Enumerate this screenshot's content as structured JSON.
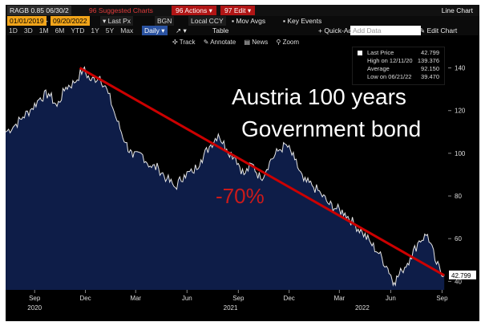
{
  "toolbar": {
    "ticker": "RAGB 0.85 06/30/2",
    "suggested_charts": "Suggested Charts",
    "actions": "Actions",
    "edit": "Edit",
    "chart_type": "Line Chart",
    "date_start": "01/01/2019",
    "date_end": "09/20/2022",
    "field": "Last Px",
    "source": "BGN",
    "currency": "Local CCY",
    "mov_avgs": "Mov Avgs",
    "key_events": "Key Events",
    "ranges": [
      "1D",
      "3D",
      "1M",
      "6M",
      "YTD",
      "1Y",
      "5Y",
      "Max"
    ],
    "frequency": "Daily",
    "table": "Table",
    "quick_add": "+ Quick-Add",
    "add_data_placeholder": "Add Data",
    "edit_chart": "Edit Chart",
    "tools": [
      "Track",
      "Annotate",
      "News",
      "Zoom"
    ]
  },
  "legend": {
    "last_price_label": "Last Price",
    "last_price": "42.799",
    "high_label": "High on 12/11/20",
    "high": "139.376",
    "average_label": "Average",
    "average": "92.150",
    "low_label": "Low on 06/21/22",
    "low": "39.470"
  },
  "colors": {
    "area_fill": "#0e1d48",
    "series_line": "#e6e6e6",
    "trend_line": "#cc0000",
    "annotation_text": "#ffffff"
  },
  "annotations": {
    "headline_line1": "Austria 100 years",
    "headline_line2": "Government bond",
    "decline_label": "-70%"
  },
  "chart_data": {
    "type": "area",
    "title": "",
    "xlabel": "",
    "ylabel": "",
    "ylim": [
      36,
      150
    ],
    "xlim": [
      "2020-07-25",
      "2022-09-23"
    ],
    "y_ticks": [
      40,
      60,
      80,
      100,
      120,
      140
    ],
    "x_month_ticks": [
      "Sep",
      "Dec",
      "Mar",
      "Jun",
      "Sep",
      "Dec",
      "Mar",
      "Jun",
      "Sep"
    ],
    "x_month_dates": [
      "2020-09-15",
      "2020-12-15",
      "2021-03-15",
      "2021-06-15",
      "2021-09-15",
      "2021-12-15",
      "2022-03-15",
      "2022-06-15",
      "2022-09-15"
    ],
    "x_year_ticks": [
      "2020",
      "2021",
      "2022"
    ],
    "x_year_dates": [
      "2020-09-15",
      "2021-09-01",
      "2022-04-25"
    ],
    "grid": false,
    "last_value_label": "42.799",
    "trend_line": {
      "start": [
        "2020-12-05",
        140
      ],
      "end": [
        "2022-09-19",
        42.8
      ]
    },
    "series": [
      {
        "x": [
          "2020-07-25",
          "2020-08-10",
          "2020-08-25",
          "2020-09-10",
          "2020-09-25",
          "2020-10-10",
          "2020-10-25",
          "2020-11-10",
          "2020-11-25",
          "2020-12-11",
          "2020-12-25",
          "2021-01-10",
          "2021-01-25",
          "2021-02-10",
          "2021-02-25",
          "2021-03-10",
          "2021-03-25",
          "2021-04-10",
          "2021-04-25",
          "2021-05-10",
          "2021-05-25",
          "2021-06-10",
          "2021-06-25",
          "2021-07-10",
          "2021-07-25",
          "2021-08-10",
          "2021-08-25",
          "2021-09-10",
          "2021-09-25",
          "2021-10-10",
          "2021-10-25",
          "2021-11-10",
          "2021-11-25",
          "2021-12-10",
          "2021-12-25",
          "2022-01-10",
          "2022-01-25",
          "2022-02-10",
          "2022-02-25",
          "2022-03-10",
          "2022-03-25",
          "2022-04-10",
          "2022-04-25",
          "2022-05-10",
          "2022-05-25",
          "2022-06-10",
          "2022-06-21",
          "2022-07-05",
          "2022-07-20",
          "2022-08-05",
          "2022-08-20",
          "2022-09-05",
          "2022-09-19"
        ],
        "y": [
          110,
          113,
          117,
          121,
          126,
          128,
          122,
          131,
          133,
          139.376,
          134,
          136,
          128,
          115,
          105,
          98,
          100,
          94,
          93,
          88,
          84,
          90,
          91,
          97,
          103,
          109,
          102,
          98,
          90,
          95,
          88,
          96,
          101,
          104,
          97,
          87,
          85,
          81,
          76,
          74,
          72,
          67,
          63,
          58,
          53,
          46,
          39.47,
          45,
          51,
          59,
          62,
          48,
          42.799
        ]
      }
    ]
  }
}
